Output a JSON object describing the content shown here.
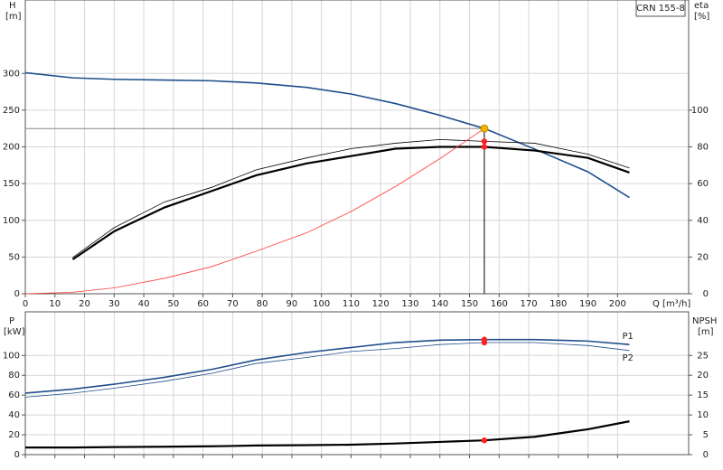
{
  "chart_data": [
    {
      "type": "line",
      "y_label": "H",
      "y_unit": "[m]",
      "y2_label": "eta",
      "y2_unit": "[%]",
      "x_label": "Q [m³/h]",
      "annotation": "CRN 155-8",
      "x": [
        0,
        16,
        30,
        47,
        63,
        78,
        95,
        110,
        125,
        140,
        155,
        172,
        190,
        204
      ],
      "series": [
        {
          "color": "#1f4e8c",
          "style": "medium",
          "values": [
            301,
            294,
            292,
            291,
            290,
            287,
            281,
            272,
            259,
            243,
            225,
            197,
            166,
            131
          ]
        },
        {
          "color": "#000000",
          "style": "thin",
          "axis": "y2",
          "values": [
            null,
            19.7,
            36,
            50,
            58,
            67.5,
            74,
            79,
            82,
            84,
            83,
            82,
            76,
            68.5
          ]
        },
        {
          "color": "#000000",
          "style": "thick",
          "axis": "y2",
          "values": [
            null,
            18.7,
            34,
            47,
            56,
            64.5,
            71,
            75,
            79,
            80,
            80,
            78,
            74,
            66
          ]
        },
        {
          "color": "#ff3b3b",
          "style": "thin",
          "values": [
            0,
            2,
            8,
            21,
            37,
            58,
            83,
            112,
            146,
            184,
            225,
            null,
            null,
            null
          ]
        }
      ],
      "operating_point": {
        "x": 155,
        "y": 225,
        "color": "#f5b400"
      },
      "xlim": [
        0,
        224
      ],
      "xticks": [
        0,
        10,
        20,
        30,
        40,
        50,
        60,
        70,
        80,
        90,
        100,
        110,
        120,
        130,
        140,
        150,
        160,
        170,
        180,
        190,
        200
      ],
      "ylim": [
        0,
        400
      ],
      "yticks": [
        0,
        50,
        100,
        150,
        200,
        250,
        300
      ],
      "y2lim": [
        0,
        160
      ],
      "y2ticks": [
        0,
        20,
        40,
        60,
        80,
        100
      ],
      "grid": true
    },
    {
      "type": "line",
      "y_label": "P",
      "y_unit": "[kW]",
      "y2_label": "NPSH",
      "y2_unit": "[m]",
      "x": [
        0,
        16,
        30,
        47,
        63,
        78,
        95,
        110,
        125,
        140,
        155,
        172,
        190,
        204
      ],
      "series": [
        {
          "name": "P1",
          "color": "#1f4e8c",
          "style": "medium",
          "values": [
            62,
            66,
            71,
            78,
            86,
            95.5,
            103,
            108,
            113,
            115.5,
            116,
            116,
            114.5,
            111
          ]
        },
        {
          "name": "P2",
          "color": "#1f4e8c",
          "style": "thin",
          "values": [
            58,
            62,
            67,
            74,
            82,
            92,
            98,
            104,
            107,
            111,
            113,
            113,
            110,
            105
          ]
        },
        {
          "color": "#000000",
          "style": "thick",
          "axis": "y2",
          "values": [
            1.8,
            1.8,
            1.9,
            2,
            2.1,
            2.3,
            2.4,
            2.5,
            2.8,
            3.2,
            3.6,
            4.5,
            6.4,
            8.4
          ]
        }
      ],
      "xlim": [
        0,
        224
      ],
      "xticks": [
        0,
        10,
        20,
        30,
        40,
        50,
        60,
        70,
        80,
        90,
        100,
        110,
        120,
        130,
        140,
        150,
        160,
        170,
        180,
        190,
        200
      ],
      "ylim": [
        0,
        144
      ],
      "yticks": [
        0,
        20,
        40,
        60,
        80,
        100
      ],
      "y2lim": [
        0,
        36
      ],
      "y2ticks": [
        0,
        5,
        10,
        15,
        20,
        25
      ],
      "grid": true
    }
  ]
}
